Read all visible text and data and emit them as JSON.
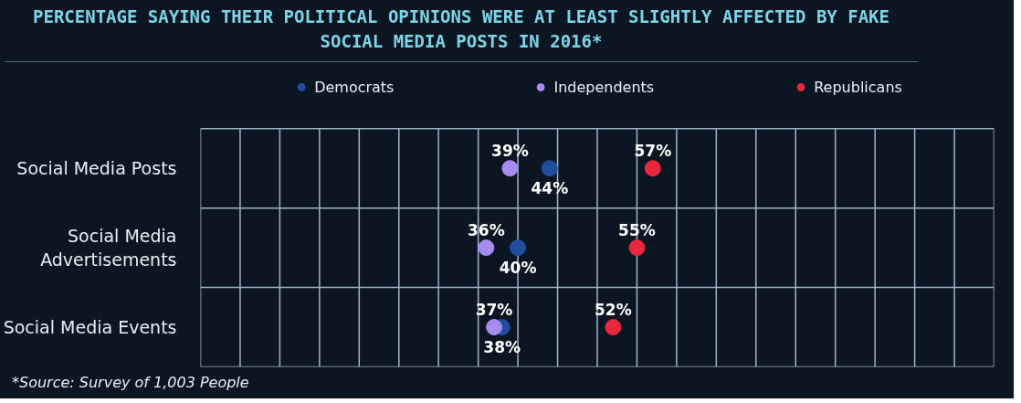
{
  "chart_data": {
    "type": "scatter",
    "orientation": "horizontal",
    "title": "PERCENTAGE SAYING THEIR POLITICAL OPINIONS WERE AT LEAST SLIGHTLY AFFECTED BY FAKE SOCIAL MEDIA POSTS IN 2016*",
    "categories": [
      "Social Media Posts",
      "Social Media Advertisements",
      "Social Media Events"
    ],
    "series": [
      {
        "name": "Democrats",
        "color": "#1f4e9c",
        "values": [
          44,
          40,
          38
        ],
        "value_labels": [
          "44%",
          "40%",
          "38%"
        ]
      },
      {
        "name": "Independents",
        "color": "#a58cf0",
        "values": [
          39,
          36,
          37
        ],
        "value_labels": [
          "39%",
          "36%",
          "37%"
        ]
      },
      {
        "name": "Republicans",
        "color": "#e8283c",
        "values": [
          57,
          55,
          52
        ],
        "value_labels": [
          "57%",
          "55%",
          "52%"
        ]
      }
    ],
    "xlim": [
      0,
      100
    ],
    "xticks": [
      {
        "value": 0,
        "label": null
      },
      {
        "value": 5,
        "label": null
      },
      {
        "value": 10,
        "label": null
      },
      {
        "value": 15,
        "label": null
      },
      {
        "value": 20,
        "label": null
      },
      {
        "value": 25,
        "label": null
      },
      {
        "value": 30,
        "label": null
      },
      {
        "value": 35,
        "label": null
      },
      {
        "value": 40,
        "label": null
      },
      {
        "value": 45,
        "label": null
      },
      {
        "value": 50,
        "label": null
      },
      {
        "value": 55,
        "label": null
      },
      {
        "value": 60,
        "label": null
      },
      {
        "value": 65,
        "label": null
      },
      {
        "value": 70,
        "label": null
      },
      {
        "value": 75,
        "label": null
      },
      {
        "value": 80,
        "label": null
      },
      {
        "value": 85,
        "label": null
      },
      {
        "value": 90,
        "label": null
      },
      {
        "value": 95,
        "label": null
      },
      {
        "value": 100,
        "label": null
      }
    ],
    "tick_labels": "y",
    "grid": true,
    "legend": "top",
    "marker": "circle",
    "annotations": [
      "*Source: Survey of 1,003 People"
    ]
  }
}
